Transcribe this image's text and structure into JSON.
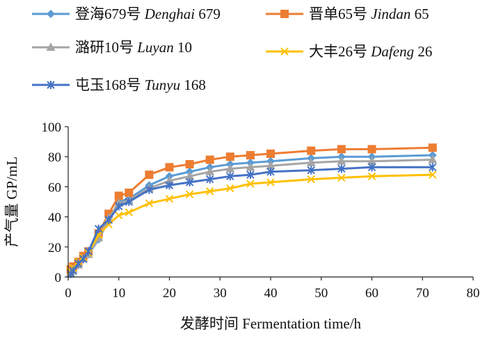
{
  "chart_data": {
    "type": "line",
    "xlabel": "发酵时间 Fermentation time/h",
    "ylabel": "产气量 GP/mL",
    "xlim": [
      0,
      80
    ],
    "ylim": [
      0,
      100
    ],
    "xticks": [
      0,
      10,
      20,
      30,
      40,
      50,
      60,
      70,
      80
    ],
    "yticks": [
      0,
      20,
      40,
      60,
      80,
      100
    ],
    "grid": false,
    "legend_position": "top",
    "x": [
      0.5,
      1,
      2,
      3,
      4,
      6,
      8,
      10,
      12,
      16,
      20,
      24,
      28,
      32,
      36,
      40,
      48,
      54,
      60,
      72
    ],
    "series": [
      {
        "name_cn": "登海679号",
        "name_en": "Denghai 679",
        "color": "#5b9bd5",
        "marker": "diamond",
        "values": [
          3,
          5,
          8,
          12,
          15,
          25,
          38,
          50,
          52,
          61,
          67,
          70,
          73,
          75,
          76,
          77,
          79,
          80,
          80,
          81
        ]
      },
      {
        "name_cn": "晋单65号",
        "name_en": "Jindan 65",
        "color": "#ed7d31",
        "marker": "square",
        "values": [
          5,
          7,
          10,
          14,
          17,
          29,
          42,
          54,
          56,
          68,
          73,
          75,
          78,
          80,
          81,
          82,
          84,
          85,
          85,
          86
        ]
      },
      {
        "name_cn": "潞研10号",
        "name_en": "Luyan 10",
        "color": "#a5a5a5",
        "marker": "triangle",
        "values": [
          3,
          5,
          8,
          12,
          15,
          26,
          39,
          49,
          51,
          59,
          64,
          67,
          70,
          72,
          73,
          74,
          76,
          77,
          77,
          78
        ]
      },
      {
        "name_cn": "大丰26号",
        "name_en": "Dafeng 26",
        "color": "#ffc000",
        "marker": "x",
        "values": [
          4,
          6,
          10,
          13,
          16,
          28,
          35,
          41,
          43,
          49,
          52,
          55,
          57,
          59,
          62,
          63,
          65,
          66,
          67,
          68
        ]
      },
      {
        "name_cn": "屯玉168号",
        "name_en": "Tunyu 168",
        "color": "#4472c4",
        "marker": "star",
        "values": [
          2,
          4,
          9,
          12,
          17,
          32,
          38,
          47,
          50,
          58,
          61,
          63,
          65,
          67,
          68,
          70,
          71,
          72,
          73,
          73
        ]
      }
    ]
  }
}
